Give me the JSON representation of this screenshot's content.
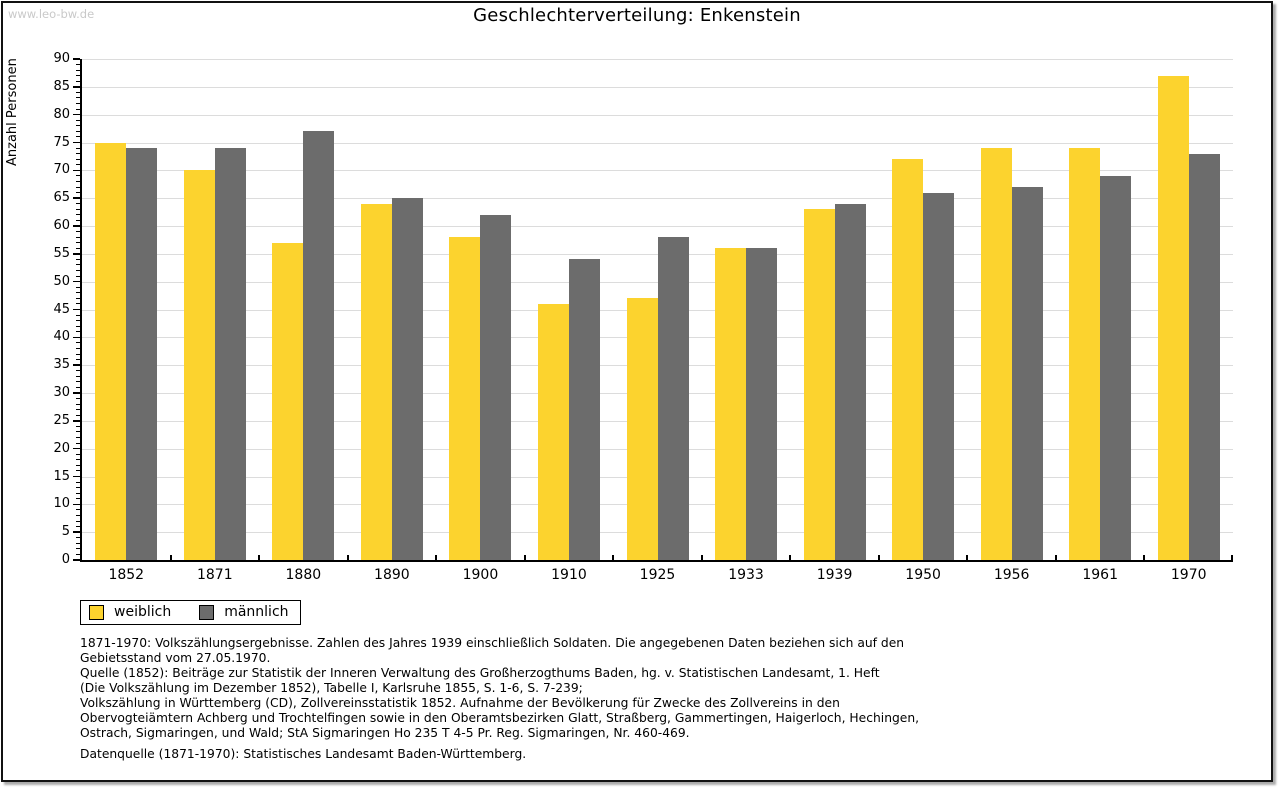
{
  "watermark": "www.leo-bw.de",
  "chart_data": {
    "type": "bar",
    "title": "Geschlechterverteilung: Enkenstein",
    "xlabel": "",
    "ylabel": "Anzahl Personen",
    "ylim": [
      0,
      90
    ],
    "ytick_step": 5,
    "yminor_step": 1,
    "grid": true,
    "legend_position": "below-left",
    "categories": [
      "1852",
      "1871",
      "1880",
      "1890",
      "1900",
      "1910",
      "1925",
      "1933",
      "1939",
      "1950",
      "1956",
      "1961",
      "1970"
    ],
    "series": [
      {
        "name": "weiblich",
        "color": "#FCD32E",
        "values": [
          75,
          70,
          57,
          64,
          58,
          46,
          47,
          56,
          63,
          72,
          74,
          74,
          87
        ]
      },
      {
        "name": "männlich",
        "color": "#6C6C6C",
        "values": [
          74,
          74,
          77,
          65,
          62,
          54,
          58,
          56,
          64,
          66,
          67,
          69,
          73
        ]
      }
    ]
  },
  "footnotes": {
    "lines": [
      "1871-1970: Volkszählungsergebnisse. Zahlen des Jahres 1939 einschließlich Soldaten. Die angegebenen Daten beziehen sich auf den",
      "Gebietsstand vom 27.05.1970.",
      "Quelle (1852): Beiträge zur Statistik der Inneren Verwaltung des Großherzogthums Baden, hg. v. Statistischen Landesamt, 1. Heft",
      "(Die Volkszählung im Dezember 1852), Tabelle I, Karlsruhe 1855, S. 1-6, S. 7-239;",
      "Volkszählung in Württemberg (CD), Zollvereinsstatistik 1852. Aufnahme der Bevölkerung für Zwecke des Zollvereins in den",
      "Obervogteiämtern Achberg und Trochtelfingen sowie in den Oberamtsbezirken Glatt, Straßberg, Gammertingen, Haigerloch, Hechingen,",
      "Ostrach, Sigmaringen, und Wald; StA Sigmaringen Ho 235 T 4-5 Pr. Reg. Sigmaringen, Nr. 460-469."
    ],
    "datasource": "Datenquelle (1871-1970): Statistisches Landesamt Baden-Württemberg."
  },
  "colors": {
    "grid": "#DCDCDC",
    "axis": "#000000",
    "watermark": "#C9C9C9"
  }
}
